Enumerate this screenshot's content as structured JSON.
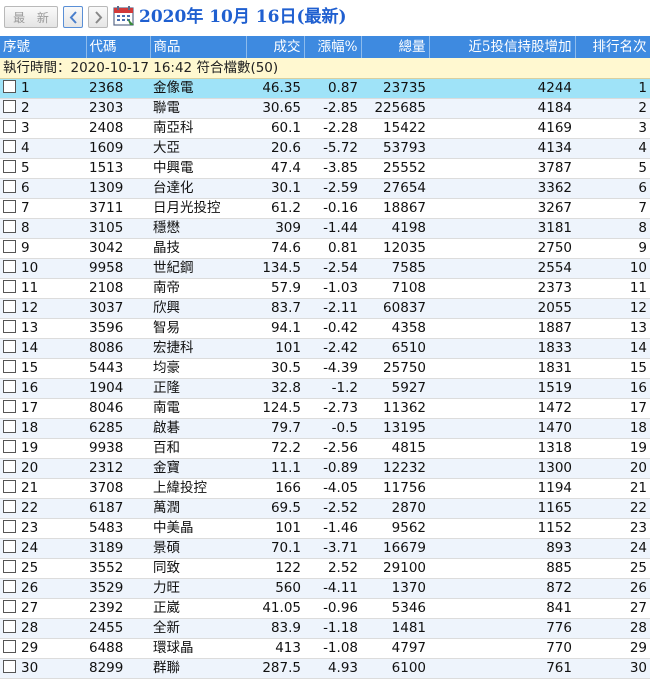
{
  "toolbar": {
    "latest_label": "最 新",
    "date_title": "2020年 10月 16日(最新)"
  },
  "columns": [
    "序號",
    "代碼",
    "商品",
    "成交",
    "漲幅%",
    "總量",
    "近5投信持股增加",
    "排行名次"
  ],
  "exec_line": "執行時間：2020-10-17 16:42 符合檔數(50)",
  "colors": {
    "header_bg": "#3e8ae0",
    "up": "#e8101c",
    "down": "#1a8a1a",
    "selected": "#9fe3f8",
    "exec_bg": "#fff8d0"
  },
  "rows": [
    {
      "no": "1",
      "code": "2368",
      "name": "金像電",
      "price": "46.35",
      "chg": "0.87",
      "vol": "23735",
      "inc": "4244",
      "rank": "1",
      "dir": "up"
    },
    {
      "no": "2",
      "code": "2303",
      "name": "聯電",
      "price": "30.65",
      "chg": "-2.85",
      "vol": "225685",
      "inc": "4184",
      "rank": "2",
      "dir": "down"
    },
    {
      "no": "3",
      "code": "2408",
      "name": "南亞科",
      "price": "60.1",
      "chg": "-2.28",
      "vol": "15422",
      "inc": "4169",
      "rank": "3",
      "dir": "down"
    },
    {
      "no": "4",
      "code": "1609",
      "name": "大亞",
      "price": "20.6",
      "chg": "-5.72",
      "vol": "53793",
      "inc": "4134",
      "rank": "4",
      "dir": "down"
    },
    {
      "no": "5",
      "code": "1513",
      "name": "中興電",
      "price": "47.4",
      "chg": "-3.85",
      "vol": "25552",
      "inc": "3787",
      "rank": "5",
      "dir": "down"
    },
    {
      "no": "6",
      "code": "1309",
      "name": "台達化",
      "price": "30.1",
      "chg": "-2.59",
      "vol": "27654",
      "inc": "3362",
      "rank": "6",
      "dir": "down"
    },
    {
      "no": "7",
      "code": "3711",
      "name": "日月光投控",
      "price": "61.2",
      "chg": "-0.16",
      "vol": "18867",
      "inc": "3267",
      "rank": "7",
      "dir": "down"
    },
    {
      "no": "8",
      "code": "3105",
      "name": "穩懋",
      "price": "309",
      "chg": "-1.44",
      "vol": "4198",
      "inc": "3181",
      "rank": "8",
      "dir": "down"
    },
    {
      "no": "9",
      "code": "3042",
      "name": "晶技",
      "price": "74.6",
      "chg": "0.81",
      "vol": "12035",
      "inc": "2750",
      "rank": "9",
      "dir": "up"
    },
    {
      "no": "10",
      "code": "9958",
      "name": "世紀鋼",
      "price": "134.5",
      "chg": "-2.54",
      "vol": "7585",
      "inc": "2554",
      "rank": "10",
      "dir": "down"
    },
    {
      "no": "11",
      "code": "2108",
      "name": "南帝",
      "price": "57.9",
      "chg": "-1.03",
      "vol": "7108",
      "inc": "2373",
      "rank": "11",
      "dir": "down"
    },
    {
      "no": "12",
      "code": "3037",
      "name": "欣興",
      "price": "83.7",
      "chg": "-2.11",
      "vol": "60837",
      "inc": "2055",
      "rank": "12",
      "dir": "down"
    },
    {
      "no": "13",
      "code": "3596",
      "name": "智易",
      "price": "94.1",
      "chg": "-0.42",
      "vol": "4358",
      "inc": "1887",
      "rank": "13",
      "dir": "down"
    },
    {
      "no": "14",
      "code": "8086",
      "name": "宏捷科",
      "price": "101",
      "chg": "-2.42",
      "vol": "6510",
      "inc": "1833",
      "rank": "14",
      "dir": "down"
    },
    {
      "no": "15",
      "code": "5443",
      "name": "均豪",
      "price": "30.5",
      "chg": "-4.39",
      "vol": "25750",
      "inc": "1831",
      "rank": "15",
      "dir": "down"
    },
    {
      "no": "16",
      "code": "1904",
      "name": "正隆",
      "price": "32.8",
      "chg": "-1.2",
      "vol": "5927",
      "inc": "1519",
      "rank": "16",
      "dir": "down"
    },
    {
      "no": "17",
      "code": "8046",
      "name": "南電",
      "price": "124.5",
      "chg": "-2.73",
      "vol": "11362",
      "inc": "1472",
      "rank": "17",
      "dir": "down"
    },
    {
      "no": "18",
      "code": "6285",
      "name": "啟碁",
      "price": "79.7",
      "chg": "-0.5",
      "vol": "13195",
      "inc": "1470",
      "rank": "18",
      "dir": "down"
    },
    {
      "no": "19",
      "code": "9938",
      "name": "百和",
      "price": "72.2",
      "chg": "-2.56",
      "vol": "4815",
      "inc": "1318",
      "rank": "19",
      "dir": "down"
    },
    {
      "no": "20",
      "code": "2312",
      "name": "金寶",
      "price": "11.1",
      "chg": "-0.89",
      "vol": "12232",
      "inc": "1300",
      "rank": "20",
      "dir": "down"
    },
    {
      "no": "21",
      "code": "3708",
      "name": "上緯投控",
      "price": "166",
      "chg": "-4.05",
      "vol": "11756",
      "inc": "1194",
      "rank": "21",
      "dir": "down"
    },
    {
      "no": "22",
      "code": "6187",
      "name": "萬潤",
      "price": "69.5",
      "chg": "-2.52",
      "vol": "2870",
      "inc": "1165",
      "rank": "22",
      "dir": "down"
    },
    {
      "no": "23",
      "code": "5483",
      "name": "中美晶",
      "price": "101",
      "chg": "-1.46",
      "vol": "9562",
      "inc": "1152",
      "rank": "23",
      "dir": "down"
    },
    {
      "no": "24",
      "code": "3189",
      "name": "景碩",
      "price": "70.1",
      "chg": "-3.71",
      "vol": "16679",
      "inc": "893",
      "rank": "24",
      "dir": "down"
    },
    {
      "no": "25",
      "code": "3552",
      "name": "同致",
      "price": "122",
      "chg": "2.52",
      "vol": "29100",
      "inc": "885",
      "rank": "25",
      "dir": "up"
    },
    {
      "no": "26",
      "code": "3529",
      "name": "力旺",
      "price": "560",
      "chg": "-4.11",
      "vol": "1370",
      "inc": "872",
      "rank": "26",
      "dir": "down"
    },
    {
      "no": "27",
      "code": "2392",
      "name": "正崴",
      "price": "41.05",
      "chg": "-0.96",
      "vol": "5346",
      "inc": "841",
      "rank": "27",
      "dir": "down"
    },
    {
      "no": "28",
      "code": "2455",
      "name": "全新",
      "price": "83.9",
      "chg": "-1.18",
      "vol": "1481",
      "inc": "776",
      "rank": "28",
      "dir": "down"
    },
    {
      "no": "29",
      "code": "6488",
      "name": "環球晶",
      "price": "413",
      "chg": "-1.08",
      "vol": "4797",
      "inc": "770",
      "rank": "29",
      "dir": "down"
    },
    {
      "no": "30",
      "code": "8299",
      "name": "群聯",
      "price": "287.5",
      "chg": "4.93",
      "vol": "6100",
      "inc": "761",
      "rank": "30",
      "dir": "up"
    }
  ]
}
